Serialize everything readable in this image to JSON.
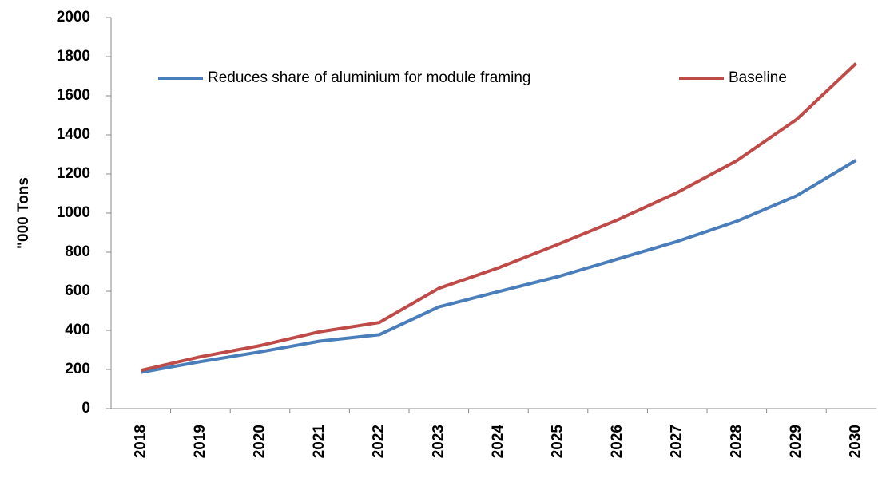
{
  "chart_data": {
    "type": "line",
    "y_label": "\"000 Tons",
    "categories": [
      "2018",
      "2019",
      "2020",
      "2021",
      "2022",
      "2023",
      "2024",
      "2025",
      "2026",
      "2027",
      "2028",
      "2029",
      "2030"
    ],
    "series": [
      {
        "name": "Reduces share of aluminium for module framing",
        "color": "#4a7ebb",
        "values": [
          185,
          240,
          290,
          345,
          378,
          520,
          598,
          675,
          765,
          855,
          958,
          1088,
          1270
        ]
      },
      {
        "name": "Baseline",
        "color": "#be4b48",
        "values": [
          195,
          265,
          322,
          393,
          440,
          615,
          720,
          840,
          965,
          1105,
          1268,
          1478,
          1765
        ]
      }
    ],
    "ylim": [
      0,
      2000
    ],
    "yticks": [
      0,
      200,
      400,
      600,
      800,
      1000,
      1200,
      1400,
      1600,
      1800,
      2000
    ],
    "grid": false,
    "legend": "top"
  }
}
